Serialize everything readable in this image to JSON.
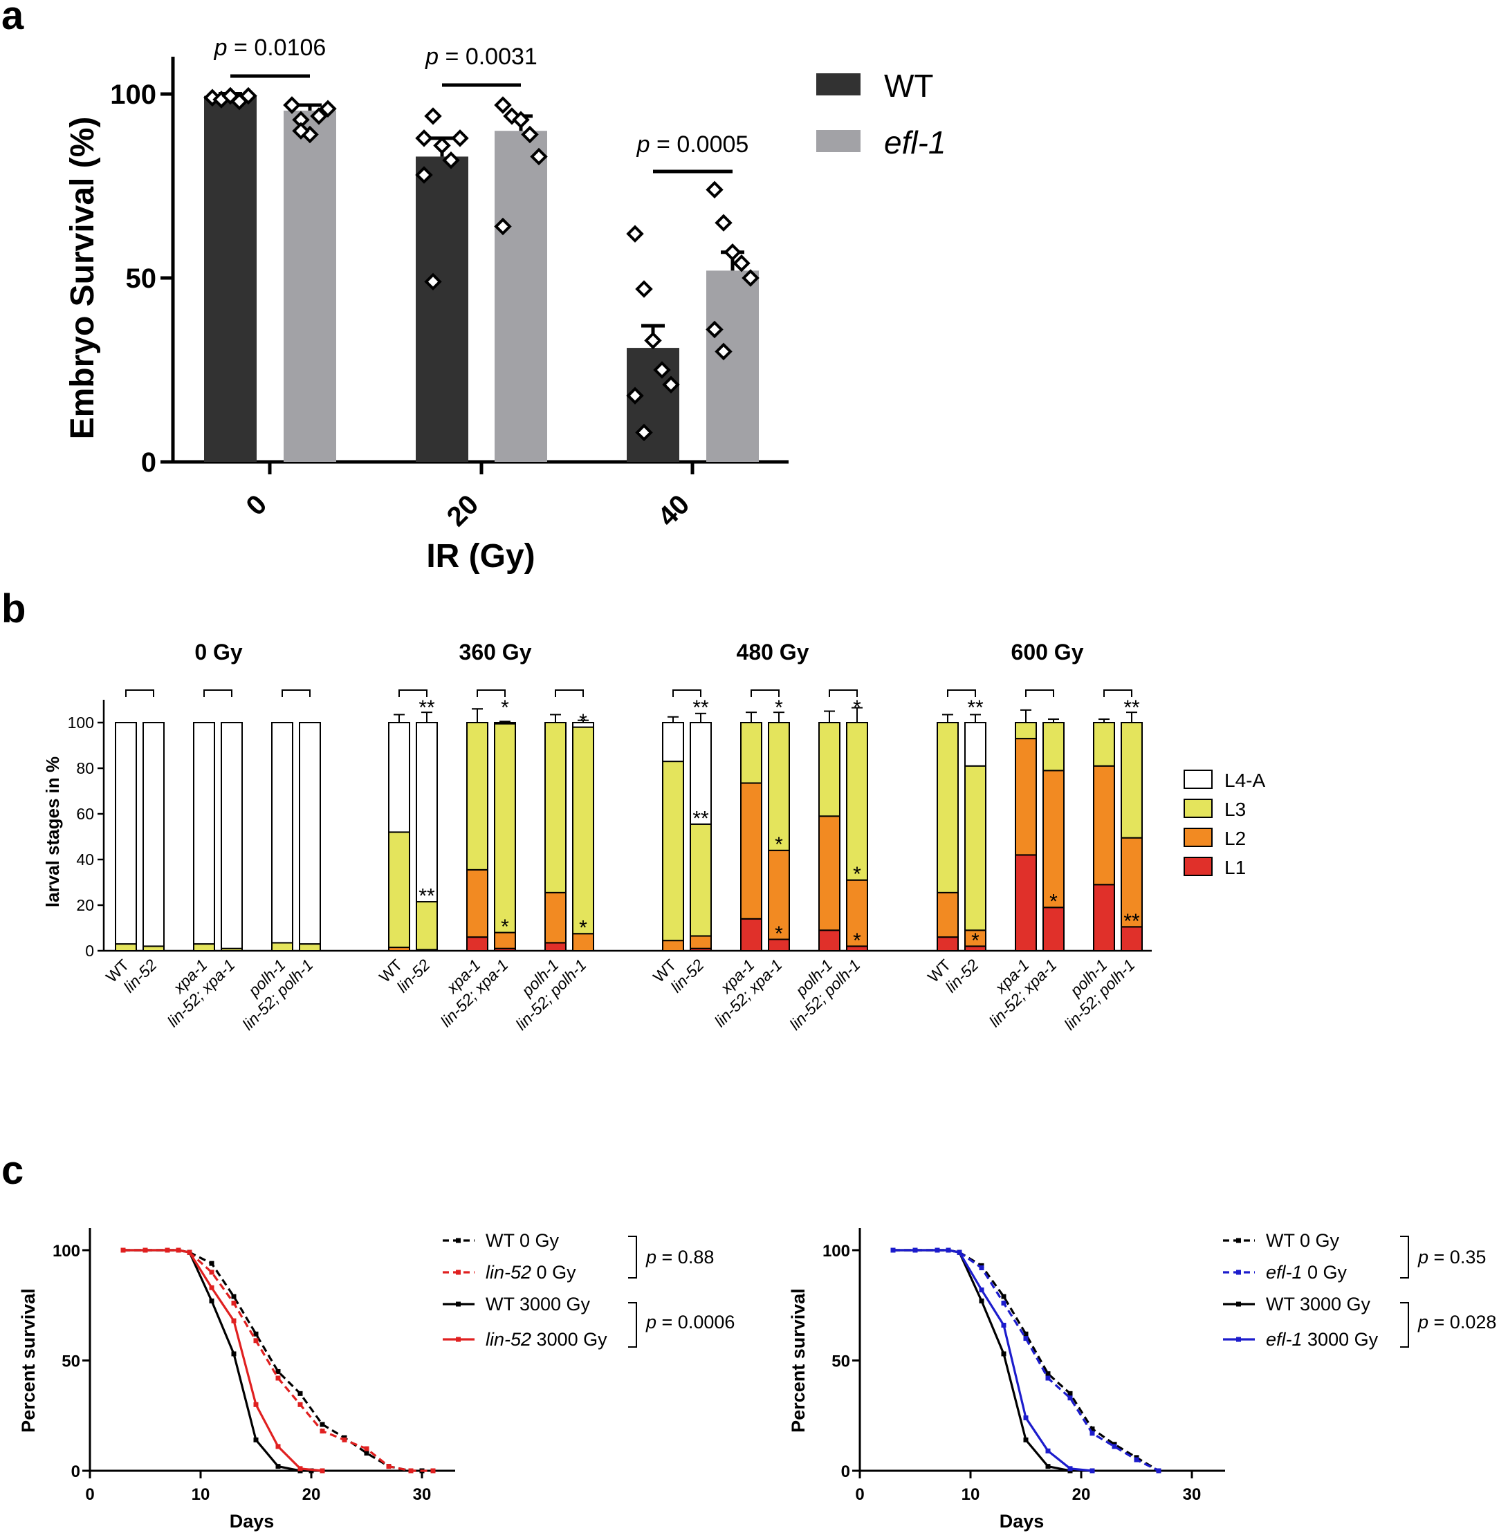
{
  "panel_letters": [
    "a",
    "b",
    "c"
  ],
  "colors": {
    "wt": "#323232",
    "efl": "#a2a2a6",
    "L4A": "#ffffff",
    "L3": "#e4e45c",
    "L2": "#f28a22",
    "L1": "#e0302a",
    "red": "#e02020",
    "blue": "#1c1ccc",
    "black": "#000000"
  },
  "chart_data": [
    {
      "id": "a",
      "type": "bar",
      "title": "",
      "xlabel": "IR (Gy)",
      "ylabel": "Embryo  Survival (%)",
      "ylim": [
        0,
        110
      ],
      "yticks": [
        "0",
        "50",
        "100"
      ],
      "categories": [
        "0",
        "20",
        "40"
      ],
      "series": [
        {
          "name": "WT",
          "italic": false,
          "values": [
            99.5,
            83,
            31
          ],
          "errors": [
            0.6,
            5,
            6
          ],
          "points": [
            [
              99,
              98.5,
              99.5,
              98,
              99.5,
              99,
              98.5,
              99.5
            ],
            [
              88,
              94,
              86,
              82,
              88,
              78,
              49
            ],
            [
              62,
              47,
              33,
              25,
              21,
              18,
              8
            ]
          ]
        },
        {
          "name": "efl-1",
          "italic": true,
          "values": [
            95.5,
            90,
            52
          ],
          "errors": [
            1.5,
            4,
            5
          ],
          "points": [
            [
              97,
              93,
              89,
              94,
              96,
              97,
              90
            ],
            [
              97,
              94,
              93,
              89,
              83,
              64
            ],
            [
              74,
              65,
              57,
              54,
              50,
              36,
              30
            ]
          ]
        }
      ],
      "pvalues": [
        {
          "prefix": "p",
          "text": " = 0.0106"
        },
        {
          "prefix": "p",
          "text": " = 0.0031"
        },
        {
          "prefix": "p",
          "text": " = 0.0005"
        }
      ]
    },
    {
      "id": "b",
      "type": "bar",
      "stacked": true,
      "ylabel": "larval stages in %",
      "ylim": [
        0,
        110
      ],
      "yticks": [
        "0",
        "20",
        "40",
        "60",
        "80",
        "100"
      ],
      "legend": [
        "L4-A",
        "L3",
        "L2",
        "L1"
      ],
      "strains": [
        "WT",
        "lin-52",
        "xpa-1",
        "lin-52; xpa-1",
        "polh-1",
        "lin-52; polh-1"
      ],
      "groups": [
        {
          "title": "0 Gy",
          "bars": [
            {
              "L1": 0,
              "L2": 0,
              "L3": 3,
              "L4A": 97,
              "err": [
                3,
                2.5
              ],
              "stars": {}
            },
            {
              "L1": 0,
              "L2": 0,
              "L3": 2,
              "L4A": 98,
              "err": [
                1.5,
                1
              ],
              "stars": {}
            },
            {
              "L1": 0,
              "L2": 0,
              "L3": 3,
              "L4A": 97,
              "err": [
                2.5,
                2.5
              ],
              "stars": {}
            },
            {
              "L1": 0,
              "L2": 0,
              "L3": 1,
              "L4A": 99,
              "err": [
                1,
                1.5
              ],
              "stars": {}
            },
            {
              "L1": 0,
              "L2": 0,
              "L3": 3.5,
              "L4A": 96.5,
              "err": [
                1.5,
                2
              ],
              "stars": {}
            },
            {
              "L1": 0,
              "L2": 0,
              "L3": 3,
              "L4A": 97,
              "err": [
                2,
                2
              ],
              "stars": {}
            }
          ]
        },
        {
          "title": "360 Gy",
          "bars": [
            {
              "L1": 0,
              "L2": 1.5,
              "L3": 50.5,
              "L4A": 48,
              "err": [
                0,
                0.5,
                4.5,
                3.5
              ],
              "stars": {}
            },
            {
              "L1": 0,
              "L2": 0.5,
              "L3": 21,
              "L4A": 78.5,
              "err": [
                0,
                0.3,
                4.5,
                4.5
              ],
              "stars": {
                "L3": "**",
                "top": "**"
              }
            },
            {
              "L1": 6,
              "L2": 29.5,
              "L3": 64.5,
              "L4A": 0,
              "err": [
                3,
                4.5,
                6
              ],
              "stars": {}
            },
            {
              "L1": 1,
              "L2": 7,
              "L3": 91.5,
              "L4A": 0.5,
              "err": [
                2,
                3,
                1
              ],
              "stars": {
                "L2": "*",
                "top": "*"
              }
            },
            {
              "L1": 3.5,
              "L2": 22,
              "L3": 74.5,
              "L4A": 0,
              "err": [
                3,
                3,
                3.5
              ],
              "stars": {}
            },
            {
              "L1": 0,
              "L2": 7.5,
              "L3": 90.5,
              "L4A": 2,
              "err": [
                0,
                1,
                1.5,
                1
              ],
              "stars": {
                "L2": "*",
                "L3": "*"
              }
            }
          ]
        },
        {
          "title": "480 Gy",
          "bars": [
            {
              "L1": 0,
              "L2": 4.5,
              "L3": 78.5,
              "L4A": 17,
              "err": [
                0,
                1,
                3.5,
                2.5
              ],
              "stars": {}
            },
            {
              "L1": 1,
              "L2": 5.5,
              "L3": 49,
              "L4A": 44.5,
              "err": [
                1.5,
                3,
                1.5,
                4
              ],
              "stars": {
                "L3": "**",
                "top": "**"
              }
            },
            {
              "L1": 14,
              "L2": 59.5,
              "L3": 26.5,
              "L4A": 0,
              "err": [
                3,
                3,
                4.5
              ],
              "stars": {}
            },
            {
              "L1": 5,
              "L2": 39,
              "L3": 56,
              "L4A": 0,
              "err": [
                2.5,
                6,
                4.5
              ],
              "stars": {
                "L1": "*",
                "L2": "*",
                "top": "*"
              }
            },
            {
              "L1": 9,
              "L2": 50,
              "L3": 41,
              "L4A": 0,
              "err": [
                3.5,
                3,
                5
              ],
              "stars": {}
            },
            {
              "L1": 2,
              "L2": 29,
              "L3": 69,
              "L4A": 0,
              "err": [
                1.5,
                6,
                6.5
              ],
              "stars": {
                "L1": "*",
                "L2": "*",
                "top": "*"
              }
            }
          ]
        },
        {
          "title": "600 Gy",
          "bars": [
            {
              "L1": 6,
              "L2": 19.5,
              "L3": 74.5,
              "L4A": 0,
              "err": [
                8,
                1,
                3.5
              ],
              "stars": {}
            },
            {
              "L1": 2,
              "L2": 7,
              "L3": 72,
              "L4A": 19,
              "err": [
                2.5,
                3,
                1.5,
                3.5
              ],
              "stars": {
                "L1": "*",
                "top": "**"
              }
            },
            {
              "L1": 42,
              "L2": 51,
              "L3": 7,
              "L4A": 0,
              "err": [
                12.5,
                2,
                5.5
              ],
              "stars": {}
            },
            {
              "L1": 19,
              "L2": 60,
              "L3": 21,
              "L4A": 0,
              "err": [
                6,
                3.5,
                1.5
              ],
              "stars": {
                "L1": "*"
              }
            },
            {
              "L1": 29,
              "L2": 52,
              "L3": 19,
              "L4A": 0,
              "err": [
                5,
                3.5,
                1.5
              ],
              "stars": {}
            },
            {
              "L1": 10.5,
              "L2": 39,
              "L3": 50.5,
              "L4A": 0,
              "err": [
                2,
                3.5,
                4.5
              ],
              "stars": {
                "L1": "**",
                "top": "**"
              }
            }
          ]
        }
      ]
    },
    {
      "id": "c-left",
      "type": "line",
      "xlabel": "Days",
      "ylabel": "Percent survival",
      "xlim": [
        0,
        33
      ],
      "ylim": [
        0,
        100
      ],
      "xticks": [
        "0",
        "10",
        "20",
        "30"
      ],
      "yticks": [
        "0",
        "50",
        "100"
      ],
      "series": [
        {
          "italic": "",
          "name": "WT 0 Gy",
          "color": "#000000",
          "dashed": true,
          "x": [
            3,
            5,
            7,
            8,
            9,
            11,
            13,
            15,
            17,
            19,
            21,
            23,
            25,
            27,
            29,
            30
          ],
          "y": [
            100,
            100,
            100,
            100,
            99,
            94,
            79,
            62,
            45,
            35,
            21,
            15,
            8,
            2,
            0,
            0
          ]
        },
        {
          "italic": "lin-52",
          "name": " 0 Gy",
          "color": "#e02020",
          "dashed": true,
          "x": [
            3,
            5,
            7,
            8,
            9,
            11,
            13,
            15,
            17,
            19,
            21,
            23,
            25,
            27,
            29,
            31
          ],
          "y": [
            100,
            100,
            100,
            100,
            99,
            90,
            76,
            59,
            42,
            30,
            18,
            14,
            10,
            2,
            0,
            0
          ]
        },
        {
          "italic": "",
          "name": "WT 3000 Gy",
          "color": "#000000",
          "dashed": false,
          "x": [
            3,
            5,
            7,
            8,
            9,
            11,
            13,
            15,
            17,
            19,
            20
          ],
          "y": [
            100,
            100,
            100,
            100,
            99,
            77,
            53,
            14,
            2,
            0,
            0
          ]
        },
        {
          "italic": "lin-52",
          "name": " 3000 Gy",
          "color": "#e02020",
          "dashed": false,
          "x": [
            3,
            5,
            7,
            8,
            9,
            11,
            13,
            15,
            17,
            19,
            21
          ],
          "y": [
            100,
            100,
            100,
            100,
            99,
            83,
            68,
            30,
            11,
            1,
            0
          ]
        }
      ],
      "pvalues": [
        {
          "prefix": "p",
          "text": " = 0.88"
        },
        {
          "prefix": "p",
          "text": " = 0.0006"
        }
      ]
    },
    {
      "id": "c-right",
      "type": "line",
      "xlabel": "Days",
      "ylabel": "Percent survival",
      "xlim": [
        0,
        33
      ],
      "ylim": [
        0,
        100
      ],
      "xticks": [
        "0",
        "10",
        "20",
        "30"
      ],
      "yticks": [
        "0",
        "50",
        "100"
      ],
      "series": [
        {
          "italic": "",
          "name": "WT 0 Gy",
          "color": "#000000",
          "dashed": true,
          "x": [
            3,
            5,
            7,
            8,
            9,
            11,
            13,
            15,
            17,
            19,
            21,
            23,
            25,
            27
          ],
          "y": [
            100,
            100,
            100,
            100,
            99,
            93,
            79,
            62,
            44,
            35,
            19,
            12,
            6,
            0
          ]
        },
        {
          "italic": "efl-1",
          "name": " 0 Gy",
          "color": "#1c1ccc",
          "dashed": true,
          "x": [
            3,
            5,
            7,
            8,
            9,
            11,
            13,
            15,
            17,
            19,
            21,
            23,
            25,
            27
          ],
          "y": [
            100,
            100,
            100,
            100,
            99,
            92,
            76,
            60,
            42,
            33,
            17,
            11,
            5,
            0
          ]
        },
        {
          "italic": "",
          "name": "WT 3000 Gy",
          "color": "#000000",
          "dashed": false,
          "x": [
            3,
            5,
            7,
            8,
            9,
            11,
            13,
            15,
            17,
            19
          ],
          "y": [
            100,
            100,
            100,
            100,
            99,
            77,
            53,
            14,
            2,
            0
          ]
        },
        {
          "italic": "efl-1",
          "name": " 3000 Gy",
          "color": "#1c1ccc",
          "dashed": false,
          "x": [
            3,
            5,
            7,
            8,
            9,
            11,
            13,
            15,
            17,
            19,
            21
          ],
          "y": [
            100,
            100,
            100,
            100,
            99,
            82,
            66,
            24,
            9,
            1,
            0
          ]
        }
      ],
      "pvalues": [
        {
          "prefix": "p",
          "text": " = 0.35"
        },
        {
          "prefix": "p",
          "text": " = 0.028"
        }
      ]
    }
  ]
}
